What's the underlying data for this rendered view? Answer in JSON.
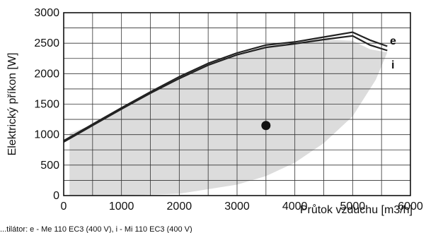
{
  "chart_data": {
    "type": "line",
    "xlabel": "Průtok vzduchu [m3/h]",
    "ylabel": "Elektrický příkon [W]",
    "xlim": [
      0,
      6000
    ],
    "ylim": [
      0,
      3000
    ],
    "x_ticks": [
      0,
      1000,
      2000,
      3000,
      4000,
      5000,
      6000
    ],
    "y_ticks": [
      0,
      500,
      1000,
      1500,
      2000,
      2500,
      3000
    ],
    "grid": true,
    "footer_note": "...tilátor: e - Me 110 EC3 (400 V), i - Mi 110 EC3 (400 V)",
    "series": [
      {
        "name": "e",
        "color": "#222222",
        "x": [
          0,
          500,
          1000,
          1500,
          2000,
          2500,
          3000,
          3500,
          4000,
          4500,
          5000,
          5300,
          5600
        ],
        "y": [
          900,
          1170,
          1440,
          1700,
          1950,
          2170,
          2340,
          2470,
          2520,
          2600,
          2680,
          2550,
          2450
        ]
      },
      {
        "name": "i",
        "color": "#222222",
        "x": [
          0,
          500,
          1000,
          1500,
          2000,
          2500,
          3000,
          3500,
          4000,
          4500,
          5000,
          5300,
          5600
        ],
        "y": [
          880,
          1150,
          1420,
          1680,
          1920,
          2140,
          2310,
          2430,
          2490,
          2560,
          2620,
          2470,
          2380
        ]
      }
    ],
    "operating_region": {
      "color": "#dcdcdc",
      "upper": {
        "x": [
          100,
          500,
          1000,
          1500,
          2000,
          2500,
          3000,
          3500,
          4000,
          4500,
          5000,
          5300,
          5600
        ],
        "y": [
          1020,
          1160,
          1430,
          1690,
          1930,
          2150,
          2320,
          2450,
          2500,
          2560,
          2540,
          2400,
          2350
        ]
      },
      "lower": {
        "x": [
          100,
          1000,
          2000,
          3000,
          3500,
          4000,
          4500,
          5000,
          5400,
          5600
        ],
        "y": [
          0,
          0,
          30,
          180,
          320,
          540,
          860,
          1300,
          1900,
          2350
        ]
      }
    },
    "marker_point": {
      "x": 3500,
      "y": 1150,
      "color": "#111111"
    }
  }
}
